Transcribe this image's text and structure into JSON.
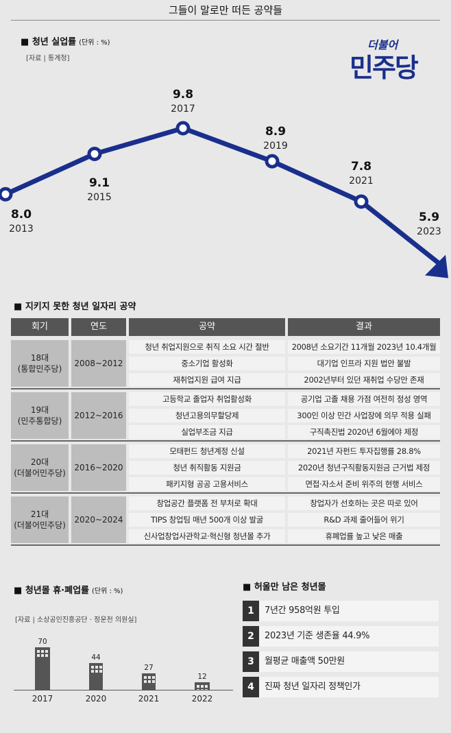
{
  "page_title": "그들이 말로만 떠든 공약들",
  "logo": {
    "top": "더불어",
    "main": "민주당",
    "color": "#1a2f8c"
  },
  "unemployment": {
    "title": "청년 실업률",
    "unit": "(단위 : %)",
    "source": "[자료 | 통계청]"
  },
  "table_section": {
    "title": "지키지 못한 청년 일자리 공약",
    "headers": [
      "회기",
      "연도",
      "공약",
      "결과"
    ],
    "groups": [
      {
        "session": "18대",
        "party": "(통합민주당)",
        "years": "2008~2012",
        "rows": [
          {
            "pledge": "청년 취업지원으로 취직 소요 시간 절반",
            "result": "2008년 소요기간 11개월 2023년 10.4개월"
          },
          {
            "pledge": "중소기업 활성화",
            "result": "대기업 인프라 지원 법안 불발"
          },
          {
            "pledge": "재취업지원 급여 지급",
            "result": "2002년부터 있던 재취업 수당만 존재"
          }
        ]
      },
      {
        "session": "19대",
        "party": "(민주통합당)",
        "years": "2012~2016",
        "rows": [
          {
            "pledge": "고등학교 졸업자 취업활성화",
            "result": "공기업 고졸 채용 가점 여전히 정성 영역"
          },
          {
            "pledge": "청년고용의무할당제",
            "result": "300인 이상 민간 사업장에 의무 적용 실패"
          },
          {
            "pledge": "실업부조금 지급",
            "result": "구직촉진법 2020년 6월에야 제정"
          }
        ]
      },
      {
        "session": "20대",
        "party": "(더불어민주당)",
        "years": "2016~2020",
        "rows": [
          {
            "pledge": "모태펀드 청년계정 신설",
            "result": "2021년 자펀드 투자집행률 28.8%"
          },
          {
            "pledge": "청년 취직활동 지원금",
            "result": "2020년 청년구직활동지원금 근거법 제정"
          },
          {
            "pledge": "패키지형 공공 고용서비스",
            "result": "면접·자소서 준비 위주의 현행 서비스"
          }
        ]
      },
      {
        "session": "21대",
        "party": "(더불어민주당)",
        "years": "2020~2024",
        "rows": [
          {
            "pledge": "창업공간 플랫폼 전 부처로 확대",
            "result": "창업자가 선호하는 곳은 따로 있어"
          },
          {
            "pledge": "TIPS 창업팀 매년 500개 이상 발굴",
            "result": "R&D 과제 줄어들어 위기"
          },
          {
            "pledge": "신사업창업사관학교·혁신형 청년몰 추가",
            "result": "휴폐업률 높고 낮은 매출"
          }
        ]
      }
    ]
  },
  "closure_section": {
    "title": "청년몰 휴·폐업률",
    "unit": "(단위 : %)",
    "source": "[자료 | 소상공인진흥공단 · 정운천 의원실]"
  },
  "mall_section": {
    "title": "허울만 남은 청년몰",
    "items": [
      {
        "num": "1",
        "text": "7년간 958억원 투입"
      },
      {
        "num": "2",
        "text": "2023년 기준 생존율 44.9%"
      },
      {
        "num": "3",
        "text": "월평균 매출액 50만원"
      },
      {
        "num": "4",
        "text": "진짜 청년 일자리 정책인가"
      }
    ]
  },
  "chart_data": [
    {
      "type": "line",
      "x": [
        "2013",
        "2015",
        "2017",
        "2019",
        "2021",
        "2023"
      ],
      "values": [
        8.0,
        9.1,
        9.8,
        8.9,
        7.8,
        5.9
      ],
      "value_labels": [
        "8.0",
        "9.1",
        "9.8",
        "8.9",
        "7.8",
        "5.9"
      ],
      "title": "청년 실업률",
      "unit": "(단위 : %)",
      "color": "#1a2f8c"
    },
    {
      "type": "bar",
      "categories": [
        "2017",
        "2020",
        "2021",
        "2022"
      ],
      "values": [
        70,
        44,
        27,
        12
      ],
      "title": "청년몰 휴·폐업률",
      "unit": "(단위 : %)",
      "color": "#555555"
    }
  ]
}
